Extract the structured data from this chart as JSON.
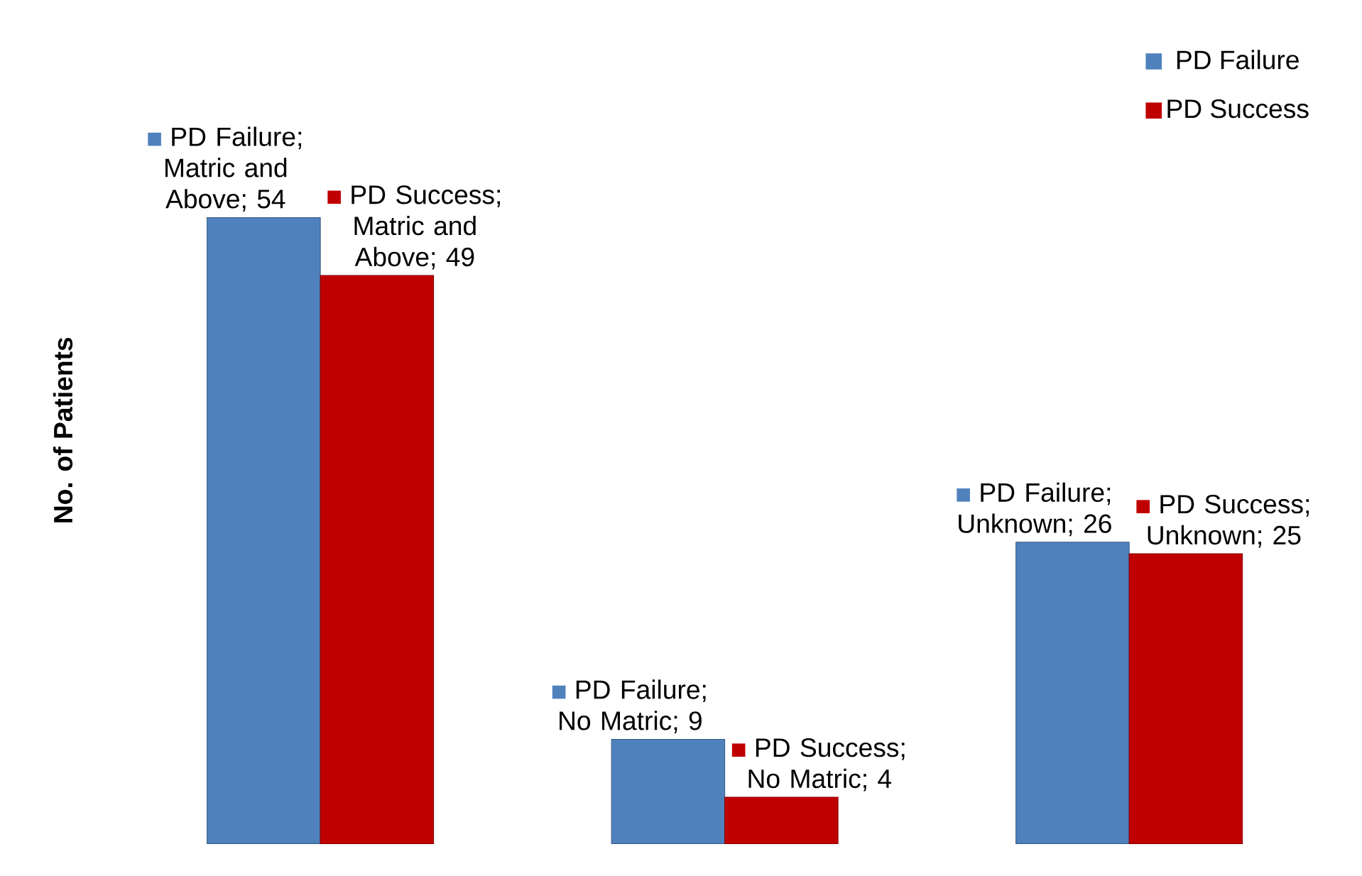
{
  "chart_data": {
    "type": "bar",
    "ylabel": "No. of Patients",
    "categories": [
      null,
      null,
      null
    ],
    "series": [
      {
        "name": "PD Failure",
        "color": "#4f81bd",
        "values": [
          54,
          9,
          26
        ],
        "value_labels": [
          "PD Failure; Matric and Above; 54",
          "PD Failure; No Matric; 9",
          "PD Failure; Unknown; 26"
        ]
      },
      {
        "name": "PD Success",
        "color": "#c00000",
        "values": [
          49,
          4,
          25
        ],
        "value_labels": [
          "PD Success; Matric and Above; 49",
          "PD Success; No Matric; 4",
          "PD Success; Unknown; 25"
        ]
      }
    ],
    "legend": "top right",
    "tick_labels": false
  }
}
